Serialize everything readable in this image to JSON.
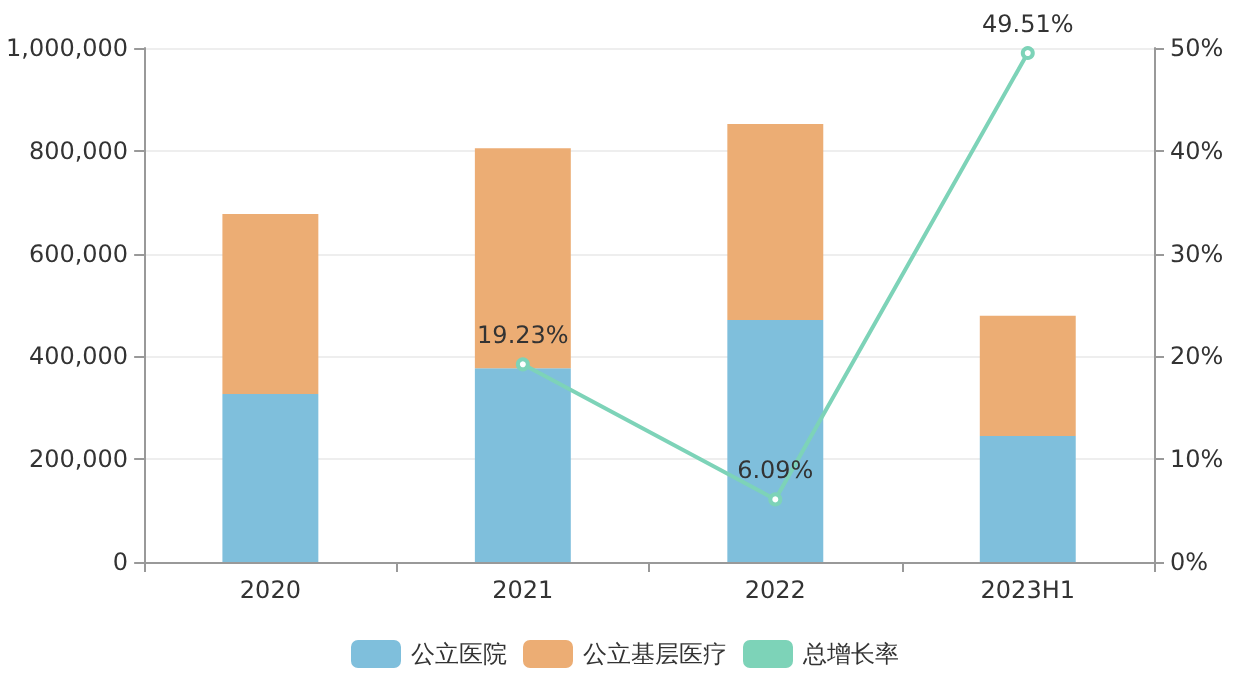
{
  "chart_data": {
    "type": "bar",
    "stacked": true,
    "categories": [
      "2020",
      "2021",
      "2022",
      "2023H1"
    ],
    "series": [
      {
        "name": "公立医院",
        "color": "#7fbfdc",
        "values": [
          327000,
          377000,
          471000,
          245000
        ]
      },
      {
        "name": "公立基层医疗",
        "color": "#ecad74",
        "values": [
          350000,
          428000,
          381000,
          234000
        ]
      },
      {
        "name": "总增长率",
        "type": "line",
        "axis": "y2",
        "color": "#7dd3b8",
        "marker": "circle",
        "values": [
          null,
          19.23,
          6.09,
          49.51
        ],
        "value_labels": [
          null,
          "19.23%",
          "6.09%",
          "49.51%"
        ]
      }
    ],
    "ylim": [
      0,
      1000000
    ],
    "yticks": [
      {
        "value": 0,
        "label": "0"
      },
      {
        "value": 200000,
        "label": "200,000"
      },
      {
        "value": 400000,
        "label": "400,000"
      },
      {
        "value": 600000,
        "label": "600,000"
      },
      {
        "value": 800000,
        "label": "800,000"
      },
      {
        "value": 1000000,
        "label": "1,000,000"
      }
    ],
    "y2lim": [
      0,
      50
    ],
    "y2ticks": [
      {
        "value": 0,
        "label": "0%"
      },
      {
        "value": 10,
        "label": "10%"
      },
      {
        "value": 20,
        "label": "20%"
      },
      {
        "value": 30,
        "label": "30%"
      },
      {
        "value": 40,
        "label": "40%"
      },
      {
        "value": 50,
        "label": "50%"
      }
    ],
    "grid": "y",
    "legend": "bottom"
  }
}
